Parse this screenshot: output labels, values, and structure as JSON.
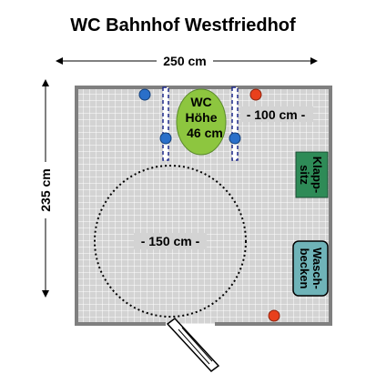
{
  "title": "WC Bahnhof Westfriedhof",
  "dimensions": {
    "width_label": "250 cm",
    "height_label": "235 cm",
    "side_gap_label": "- 100 cm -",
    "turning_circle_label": "- 150 cm -"
  },
  "fixtures": {
    "toilet": {
      "line1": "WC",
      "line2": "Höhe",
      "line3": "46 cm",
      "color": "#8dc63f"
    },
    "folding_seat": {
      "line1": "Klapp-",
      "line2": "sitz",
      "color": "#2e8b57"
    },
    "washbasin": {
      "line1": "Wasch-",
      "line2": "becken",
      "color": "#6fb3b8"
    }
  },
  "colors": {
    "tile_fill": "#d3d3d3",
    "tile_grid": "#ffffff",
    "wall": "#7f7f7f",
    "grab_bar": "#1f2a8a",
    "blue_marker": "#2a6fc9",
    "red_marker": "#e8401c"
  }
}
